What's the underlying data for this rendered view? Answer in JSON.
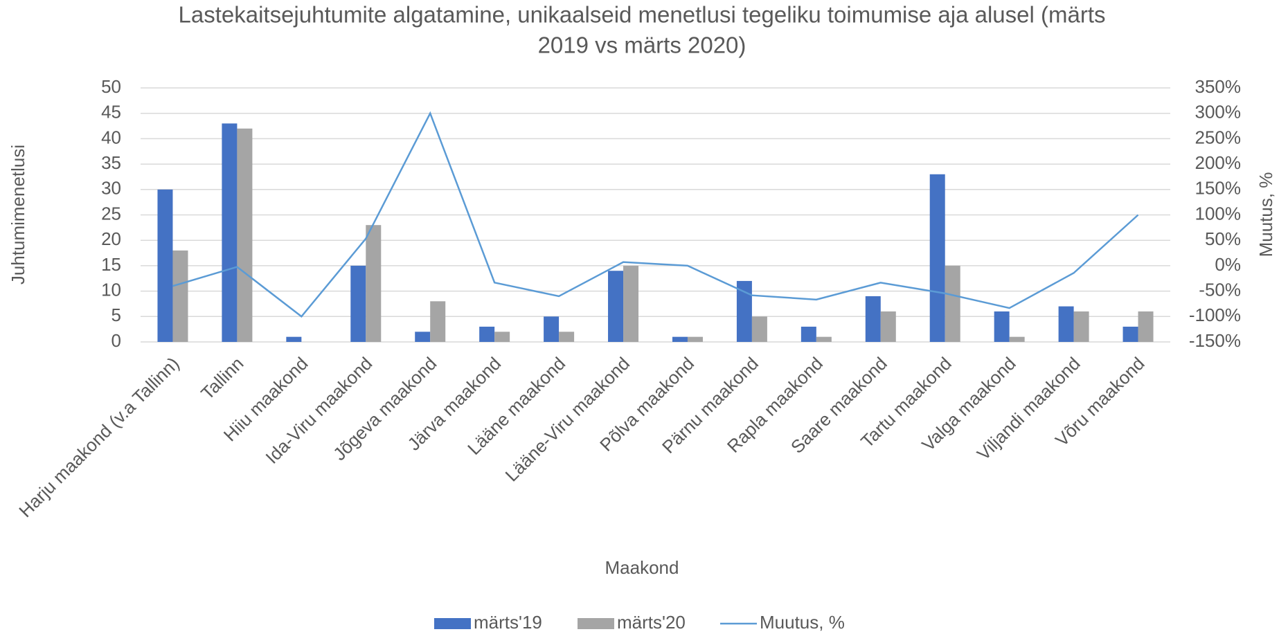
{
  "chart_data": {
    "type": "bar_line",
    "title": [
      "Lastekaitsejuhtumite algatamine, unikaalseid menetlusi tegeliku toimumise aja alusel (märts",
      "2019 vs märts 2020)"
    ],
    "x_label": "Maakond",
    "y_label": "Juhtumimenetlusi",
    "y2_label": "Muutus, %",
    "categories": [
      "Harju maakond (v.a Tallinn)",
      "Tallinn",
      "Hiiu maakond",
      "Ida-Viru maakond",
      "Jõgeva maakond",
      "Järva maakond",
      "Lääne maakond",
      "Lääne-Viru maakond",
      "Põlva maakond",
      "Pärnu maakond",
      "Rapla maakond",
      "Saare maakond",
      "Tartu maakond",
      "Valga maakond",
      "Viljandi maakond",
      "Võru maakond"
    ],
    "series": [
      {
        "name": "märts'19",
        "type": "bar",
        "color": "#4472c4",
        "values": [
          30,
          43,
          1,
          15,
          2,
          3,
          5,
          14,
          1,
          12,
          3,
          9,
          33,
          6,
          7,
          3
        ]
      },
      {
        "name": "märts'20",
        "type": "bar",
        "color": "#a5a5a5",
        "values": [
          18,
          42,
          0,
          23,
          8,
          2,
          2,
          15,
          1,
          5,
          1,
          6,
          15,
          1,
          6,
          6
        ]
      },
      {
        "name": "Muutus, %",
        "type": "line",
        "axis": "y2",
        "color": "#5b9bd5",
        "values": [
          -40,
          -2.3,
          -100,
          53.3,
          300,
          -33.3,
          -60,
          7.1,
          0,
          -58.3,
          -66.7,
          -33.3,
          -54.5,
          -83.3,
          -14.3,
          100
        ]
      }
    ],
    "ylim": [
      0,
      50
    ],
    "yticks": [
      0,
      5,
      10,
      15,
      20,
      25,
      30,
      35,
      40,
      45,
      50
    ],
    "y2lim": [
      -150,
      350
    ],
    "y2ticks": [
      {
        "value": -150,
        "label": "-150%"
      },
      {
        "value": -100,
        "label": "-100%"
      },
      {
        "value": -50,
        "label": "-50%"
      },
      {
        "value": 0,
        "label": "0%"
      },
      {
        "value": 50,
        "label": "50%"
      },
      {
        "value": 100,
        "label": "100%"
      },
      {
        "value": 150,
        "label": "150%"
      },
      {
        "value": 200,
        "label": "200%"
      },
      {
        "value": 250,
        "label": "250%"
      },
      {
        "value": 300,
        "label": "300%"
      },
      {
        "value": 350,
        "label": "350%"
      }
    ],
    "grid": true,
    "legend": "bottom"
  }
}
